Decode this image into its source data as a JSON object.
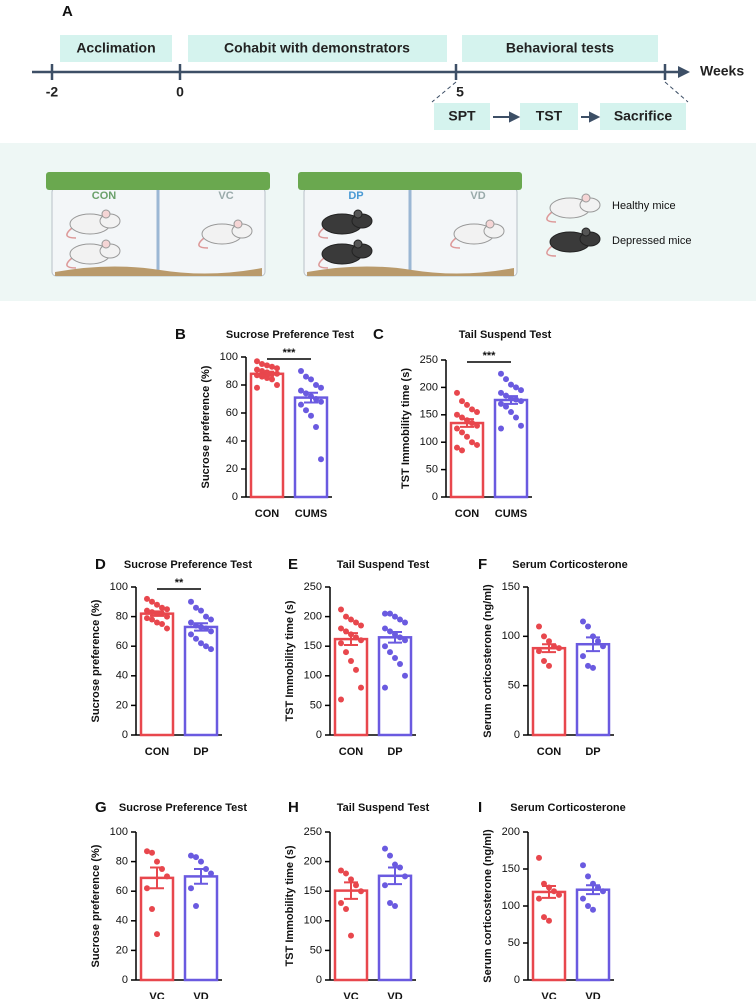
{
  "timeline": {
    "label": "A",
    "phases": [
      "Acclimation",
      "Cohabit with demonstrators",
      "Behavioral tests"
    ],
    "axis_label": "Weeks",
    "ticks": [
      "-2",
      "0",
      "5"
    ],
    "steps": [
      "SPT",
      "TST",
      "Sacrifice"
    ]
  },
  "cages": {
    "labels": [
      "CON",
      "VC",
      "DP",
      "VD"
    ],
    "legend": [
      "Healthy mice",
      "Depressed mice"
    ]
  },
  "chart_data": [
    {
      "type": "bar",
      "label": "B",
      "title": "Sucrose Preference Test",
      "ylabel": "Sucrose preference (%)",
      "categories": [
        "CON",
        "CUMS"
      ],
      "colors": [
        "#e8474d",
        "#6a5ae0"
      ],
      "values": [
        88,
        71
      ],
      "errors": [
        1.5,
        3.5
      ],
      "points": [
        [
          97,
          95,
          94,
          93,
          92,
          91,
          90,
          89,
          88,
          88,
          87,
          86,
          85,
          84,
          80,
          78
        ],
        [
          90,
          86,
          84,
          80,
          78,
          76,
          74,
          72,
          70,
          68,
          66,
          62,
          58,
          50,
          27
        ]
      ],
      "ylim": [
        0,
        100
      ],
      "yticks": [
        0,
        20,
        40,
        60,
        80,
        100
      ],
      "significance": "***"
    },
    {
      "type": "bar",
      "label": "C",
      "title": "Tail Suspend Test",
      "ylabel": "TST Immobility time (s)",
      "categories": [
        "CON",
        "CUMS"
      ],
      "colors": [
        "#e8474d",
        "#6a5ae0"
      ],
      "values": [
        135,
        177
      ],
      "errors": [
        7,
        7
      ],
      "points": [
        [
          190,
          175,
          168,
          160,
          155,
          150,
          145,
          140,
          135,
          130,
          125,
          118,
          110,
          100,
          95,
          90,
          85
        ],
        [
          225,
          215,
          205,
          200,
          195,
          190,
          185,
          180,
          178,
          175,
          170,
          165,
          155,
          145,
          130,
          125
        ]
      ],
      "ylim": [
        0,
        250
      ],
      "yticks": [
        0,
        50,
        100,
        150,
        200,
        250
      ],
      "significance": "***"
    },
    {
      "type": "bar",
      "label": "D",
      "title": "Sucrose Preference Test",
      "ylabel": "Sucrose preference (%)",
      "categories": [
        "CON",
        "DP"
      ],
      "colors": [
        "#e8474d",
        "#6a5ae0"
      ],
      "values": [
        82,
        73
      ],
      "errors": [
        1.5,
        2.5
      ],
      "points": [
        [
          92,
          90,
          88,
          86,
          85,
          84,
          83,
          82,
          82,
          80,
          79,
          78,
          76,
          75,
          72
        ],
        [
          90,
          86,
          84,
          80,
          78,
          76,
          74,
          73,
          72,
          70,
          68,
          65,
          62,
          60,
          58
        ]
      ],
      "ylim": [
        0,
        100
      ],
      "yticks": [
        0,
        20,
        40,
        60,
        80,
        100
      ],
      "significance": "**"
    },
    {
      "type": "bar",
      "label": "E",
      "title": "Tail Suspend Test",
      "ylabel": "TST Immobility time (s)",
      "categories": [
        "CON",
        "DP"
      ],
      "colors": [
        "#e8474d",
        "#6a5ae0"
      ],
      "values": [
        162,
        165
      ],
      "errors": [
        10,
        9
      ],
      "points": [
        [
          212,
          200,
          195,
          190,
          185,
          180,
          175,
          170,
          165,
          160,
          155,
          140,
          125,
          110,
          80,
          60
        ],
        [
          205,
          205,
          200,
          195,
          190,
          180,
          175,
          170,
          165,
          160,
          150,
          140,
          130,
          120,
          100,
          80
        ]
      ],
      "ylim": [
        0,
        250
      ],
      "yticks": [
        0,
        50,
        100,
        150,
        200,
        250
      ]
    },
    {
      "type": "bar",
      "label": "F",
      "title": "Serum Corticosterone",
      "ylabel": "Serum corticosterone (ng/ml)",
      "categories": [
        "CON",
        "DP"
      ],
      "colors": [
        "#e8474d",
        "#6a5ae0"
      ],
      "values": [
        88,
        92
      ],
      "errors": [
        4,
        7
      ],
      "points": [
        [
          110,
          100,
          95,
          90,
          88,
          85,
          75,
          70
        ],
        [
          115,
          110,
          100,
          95,
          90,
          80,
          70,
          68
        ]
      ],
      "ylim": [
        0,
        150
      ],
      "yticks": [
        0,
        50,
        100,
        150
      ]
    },
    {
      "type": "bar",
      "label": "G",
      "title": "Sucrose Preference Test",
      "ylabel": "Sucrose preference (%)",
      "categories": [
        "VC",
        "VD"
      ],
      "colors": [
        "#e8474d",
        "#6a5ae0"
      ],
      "values": [
        69,
        70
      ],
      "errors": [
        7,
        5
      ],
      "points": [
        [
          87,
          86,
          80,
          75,
          70,
          62,
          48,
          31
        ],
        [
          84,
          83,
          80,
          75,
          72,
          62,
          50
        ]
      ],
      "ylim": [
        0,
        100
      ],
      "yticks": [
        0,
        20,
        40,
        60,
        80,
        100
      ]
    },
    {
      "type": "bar",
      "label": "H",
      "title": "Tail Suspend Test",
      "ylabel": "TST Immobility time (s)",
      "categories": [
        "VC",
        "VD"
      ],
      "colors": [
        "#e8474d",
        "#6a5ae0"
      ],
      "values": [
        151,
        176
      ],
      "errors": [
        14,
        14
      ],
      "points": [
        [
          185,
          180,
          170,
          160,
          150,
          130,
          120,
          75
        ],
        [
          222,
          210,
          195,
          190,
          175,
          160,
          130,
          125
        ]
      ],
      "ylim": [
        0,
        250
      ],
      "yticks": [
        0,
        50,
        100,
        150,
        200,
        250
      ]
    },
    {
      "type": "bar",
      "label": "I",
      "title": "Serum Corticosterone",
      "ylabel": "Serum corticosterone (ng/ml)",
      "categories": [
        "VC",
        "VD"
      ],
      "colors": [
        "#e8474d",
        "#6a5ae0"
      ],
      "values": [
        119,
        122
      ],
      "errors": [
        8,
        6
      ],
      "points": [
        [
          165,
          130,
          125,
          120,
          115,
          110,
          85,
          80
        ],
        [
          155,
          140,
          130,
          125,
          120,
          110,
          100,
          95
        ]
      ],
      "ylim": [
        0,
        200
      ],
      "yticks": [
        0,
        50,
        100,
        150,
        200
      ]
    }
  ]
}
